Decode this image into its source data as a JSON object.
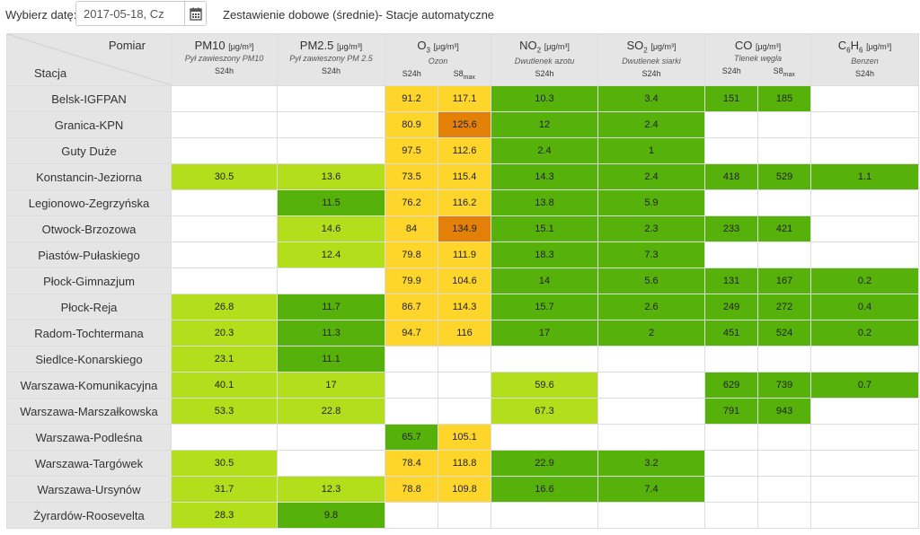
{
  "topbar": {
    "date_label": "Wybierz datę:",
    "date_value": "2017-05-18, Cz",
    "title": "Zestawienie dobowe (średnie)- Stacje automatyczne"
  },
  "header": {
    "pomiar": "Pomiar",
    "stacja": "Stacja",
    "pm10": {
      "name": "PM10",
      "unit": "[μg/m³]",
      "desc": "Pył zawieszony PM10",
      "sub": "S24h"
    },
    "pm25": {
      "name": "PM2.5",
      "unit": "[μg/m³]",
      "desc": "Pył zawieszony PM 2.5",
      "sub": "S24h"
    },
    "o3": {
      "name_main": "O",
      "name_sub": "3",
      "unit": "[μg/m³]",
      "desc": "Ozon",
      "sub1": "S24h",
      "sub2_main": "S8",
      "sub2_sub": "max"
    },
    "no2": {
      "name_main": "NO",
      "name_sub": "2",
      "unit": "[μg/m³]",
      "desc": "Dwutlenek azotu",
      "sub": "S24h"
    },
    "so2": {
      "name_main": "SO",
      "name_sub": "2",
      "unit": "[μg/m³]",
      "desc": "Dwutlenek siarki",
      "sub": "S24h"
    },
    "co": {
      "name": "CO",
      "unit": "[μg/m³]",
      "desc": "Tlenek węgla",
      "sub1": "S24h",
      "sub2_main": "S8",
      "sub2_sub": "max"
    },
    "c6h6": {
      "name_c": "C",
      "name_c_sub": "6",
      "name_h": "H",
      "name_h_sub": "6",
      "unit": "[μg/m³]",
      "desc": "Benzen",
      "sub": "S24h"
    }
  },
  "colors": {
    "g": "#57b10b",
    "lg": "#b2de1b",
    "y": "#fed52b",
    "o": "#e38007",
    "n": "#ffffff"
  },
  "rows": [
    {
      "station": "Belsk-IGFPAN",
      "cells": [
        [
          "",
          ""
        ],
        [
          "",
          ""
        ],
        [
          "91.2",
          "y"
        ],
        [
          "117.1",
          "y"
        ],
        [
          "10.3",
          "g"
        ],
        [
          "3.4",
          "g"
        ],
        [
          "151",
          "g"
        ],
        [
          "185",
          "g"
        ],
        [
          "",
          ""
        ]
      ]
    },
    {
      "station": "Granica-KPN",
      "cells": [
        [
          "",
          ""
        ],
        [
          "",
          ""
        ],
        [
          "80.9",
          "y"
        ],
        [
          "125.6",
          "o"
        ],
        [
          "12",
          "g"
        ],
        [
          "2.4",
          "g"
        ],
        [
          "",
          ""
        ],
        [
          "",
          ""
        ],
        [
          "",
          ""
        ]
      ]
    },
    {
      "station": "Guty Duże",
      "cells": [
        [
          "",
          ""
        ],
        [
          "",
          ""
        ],
        [
          "97.5",
          "y"
        ],
        [
          "112.6",
          "y"
        ],
        [
          "2.4",
          "g"
        ],
        [
          "1",
          "g"
        ],
        [
          "",
          ""
        ],
        [
          "",
          ""
        ],
        [
          "",
          ""
        ]
      ]
    },
    {
      "station": "Konstancin-Jeziorna",
      "cells": [
        [
          "30.5",
          "lg"
        ],
        [
          "13.6",
          "lg"
        ],
        [
          "73.5",
          "y"
        ],
        [
          "115.4",
          "y"
        ],
        [
          "14.3",
          "g"
        ],
        [
          "2.4",
          "g"
        ],
        [
          "418",
          "g"
        ],
        [
          "529",
          "g"
        ],
        [
          "1.1",
          "g"
        ]
      ]
    },
    {
      "station": "Legionowo-Zegrzyńska",
      "cells": [
        [
          "",
          ""
        ],
        [
          "11.5",
          "g"
        ],
        [
          "76.2",
          "y"
        ],
        [
          "116.2",
          "y"
        ],
        [
          "13.8",
          "g"
        ],
        [
          "5.9",
          "g"
        ],
        [
          "",
          ""
        ],
        [
          "",
          ""
        ],
        [
          "",
          ""
        ]
      ]
    },
    {
      "station": "Otwock-Brzozowa",
      "cells": [
        [
          "",
          ""
        ],
        [
          "14.6",
          "lg"
        ],
        [
          "84",
          "y"
        ],
        [
          "134.9",
          "o"
        ],
        [
          "15.1",
          "g"
        ],
        [
          "2.3",
          "g"
        ],
        [
          "233",
          "g"
        ],
        [
          "421",
          "g"
        ],
        [
          "",
          ""
        ]
      ]
    },
    {
      "station": "Piastów-Pułaskiego",
      "cells": [
        [
          "",
          ""
        ],
        [
          "12.4",
          "lg"
        ],
        [
          "79.8",
          "y"
        ],
        [
          "111.9",
          "y"
        ],
        [
          "18.3",
          "g"
        ],
        [
          "7.3",
          "g"
        ],
        [
          "",
          ""
        ],
        [
          "",
          ""
        ],
        [
          "",
          ""
        ]
      ]
    },
    {
      "station": "Płock-Gimnazjum",
      "cells": [
        [
          "",
          ""
        ],
        [
          "",
          ""
        ],
        [
          "79.9",
          "y"
        ],
        [
          "104.6",
          "y"
        ],
        [
          "14",
          "g"
        ],
        [
          "5.6",
          "g"
        ],
        [
          "131",
          "g"
        ],
        [
          "167",
          "g"
        ],
        [
          "0.2",
          "g"
        ]
      ]
    },
    {
      "station": "Płock-Reja",
      "cells": [
        [
          "26.8",
          "lg"
        ],
        [
          "11.7",
          "g"
        ],
        [
          "86.7",
          "y"
        ],
        [
          "114.3",
          "y"
        ],
        [
          "15.7",
          "g"
        ],
        [
          "2.6",
          "g"
        ],
        [
          "249",
          "g"
        ],
        [
          "272",
          "g"
        ],
        [
          "0.4",
          "g"
        ]
      ]
    },
    {
      "station": "Radom-Tochtermana",
      "cells": [
        [
          "20.3",
          "lg"
        ],
        [
          "11.3",
          "g"
        ],
        [
          "94.7",
          "y"
        ],
        [
          "116",
          "y"
        ],
        [
          "17",
          "g"
        ],
        [
          "2",
          "g"
        ],
        [
          "451",
          "g"
        ],
        [
          "524",
          "g"
        ],
        [
          "0.2",
          "g"
        ]
      ]
    },
    {
      "station": "Siedlce-Konarskiego",
      "cells": [
        [
          "23.1",
          "lg"
        ],
        [
          "11.1",
          "g"
        ],
        [
          "",
          ""
        ],
        [
          "",
          ""
        ],
        [
          "",
          ""
        ],
        [
          "",
          ""
        ],
        [
          "",
          ""
        ],
        [
          "",
          ""
        ],
        [
          "",
          ""
        ]
      ]
    },
    {
      "station": "Warszawa-Komunikacyjna",
      "cells": [
        [
          "40.1",
          "lg"
        ],
        [
          "17",
          "lg"
        ],
        [
          "",
          ""
        ],
        [
          "",
          ""
        ],
        [
          "59.6",
          "lg"
        ],
        [
          "",
          ""
        ],
        [
          "629",
          "g"
        ],
        [
          "739",
          "g"
        ],
        [
          "0.7",
          "g"
        ]
      ]
    },
    {
      "station": "Warszawa-Marszałkowska",
      "cells": [
        [
          "53.3",
          "lg"
        ],
        [
          "22.8",
          "lg"
        ],
        [
          "",
          ""
        ],
        [
          "",
          ""
        ],
        [
          "67.3",
          "lg"
        ],
        [
          "",
          ""
        ],
        [
          "791",
          "g"
        ],
        [
          "943",
          "g"
        ],
        [
          "",
          ""
        ]
      ]
    },
    {
      "station": "Warszawa-Podleśna",
      "cells": [
        [
          "",
          ""
        ],
        [
          "",
          ""
        ],
        [
          "65.7",
          "g"
        ],
        [
          "105.1",
          "y"
        ],
        [
          "",
          ""
        ],
        [
          "",
          ""
        ],
        [
          "",
          ""
        ],
        [
          "",
          ""
        ],
        [
          "",
          ""
        ]
      ]
    },
    {
      "station": "Warszawa-Targówek",
      "cells": [
        [
          "30.5",
          "lg"
        ],
        [
          "",
          ""
        ],
        [
          "78.4",
          "y"
        ],
        [
          "118.8",
          "y"
        ],
        [
          "22.9",
          "g"
        ],
        [
          "3.2",
          "g"
        ],
        [
          "",
          ""
        ],
        [
          "",
          ""
        ],
        [
          "",
          ""
        ]
      ]
    },
    {
      "station": "Warszawa-Ursynów",
      "cells": [
        [
          "31.7",
          "lg"
        ],
        [
          "12.3",
          "lg"
        ],
        [
          "78.8",
          "y"
        ],
        [
          "109.8",
          "y"
        ],
        [
          "16.6",
          "g"
        ],
        [
          "7.4",
          "g"
        ],
        [
          "",
          ""
        ],
        [
          "",
          ""
        ],
        [
          "",
          ""
        ]
      ]
    },
    {
      "station": "Żyrardów-Roosevelta",
      "cells": [
        [
          "28.3",
          "lg"
        ],
        [
          "9.8",
          "g"
        ],
        [
          "",
          ""
        ],
        [
          "",
          ""
        ],
        [
          "",
          ""
        ],
        [
          "",
          ""
        ],
        [
          "",
          ""
        ],
        [
          "",
          ""
        ],
        [
          "",
          ""
        ]
      ]
    }
  ]
}
